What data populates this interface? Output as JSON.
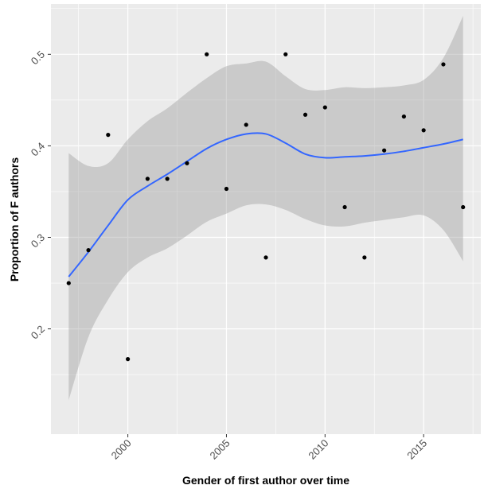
{
  "chart_data": {
    "type": "scatter",
    "title": "",
    "xlabel": "Gender of first author over time",
    "ylabel": "Proportion of F authors",
    "xlim": [
      1996.1,
      2017.9
    ],
    "ylim": [
      0.085,
      0.555
    ],
    "xticks": [
      2000,
      2005,
      2010,
      2015
    ],
    "xtick_labels": [
      "2000",
      "2005",
      "2010",
      "2015"
    ],
    "yticks": [
      0.2,
      0.3,
      0.4,
      0.5
    ],
    "ytick_labels": [
      "0.2",
      "0.3",
      "0.4",
      "0.5"
    ],
    "grid": true,
    "legend": "none",
    "points": {
      "x": [
        1997,
        1998,
        1999,
        2000,
        2001,
        2002,
        2003,
        2004,
        2005,
        2006,
        2007,
        2008,
        2009,
        2010,
        2011,
        2012,
        2013,
        2014,
        2015,
        2016,
        2017
      ],
      "y": [
        0.25,
        0.286,
        0.412,
        0.167,
        0.364,
        0.364,
        0.381,
        0.5,
        0.353,
        0.423,
        0.278,
        0.5,
        0.434,
        0.442,
        0.333,
        0.278,
        0.395,
        0.432,
        0.417,
        0.489,
        0.333
      ],
      "color": "#000000"
    },
    "smooth": {
      "method": "loess",
      "color": "#3366FF",
      "band_color": "#999999",
      "x": [
        1997,
        1998,
        1999,
        2000,
        2001,
        2002,
        2003,
        2004,
        2005,
        2006,
        2007,
        2008,
        2009,
        2010,
        2011,
        2012,
        2013,
        2014,
        2015,
        2016,
        2017
      ],
      "y": [
        0.257,
        0.284,
        0.313,
        0.341,
        0.356,
        0.369,
        0.383,
        0.397,
        0.407,
        0.413,
        0.413,
        0.403,
        0.391,
        0.387,
        0.388,
        0.389,
        0.391,
        0.394,
        0.398,
        0.402,
        0.407
      ],
      "ymin": [
        0.122,
        0.191,
        0.232,
        0.262,
        0.278,
        0.288,
        0.302,
        0.317,
        0.326,
        0.335,
        0.336,
        0.33,
        0.32,
        0.313,
        0.312,
        0.316,
        0.319,
        0.322,
        0.324,
        0.308,
        0.274
      ],
      "ymax": [
        0.392,
        0.378,
        0.381,
        0.407,
        0.427,
        0.441,
        0.458,
        0.474,
        0.487,
        0.49,
        0.492,
        0.476,
        0.462,
        0.461,
        0.464,
        0.463,
        0.464,
        0.466,
        0.472,
        0.496,
        0.542
      ]
    },
    "panel_background": "#EBEBEB",
    "grid_color": "#FFFFFF"
  }
}
